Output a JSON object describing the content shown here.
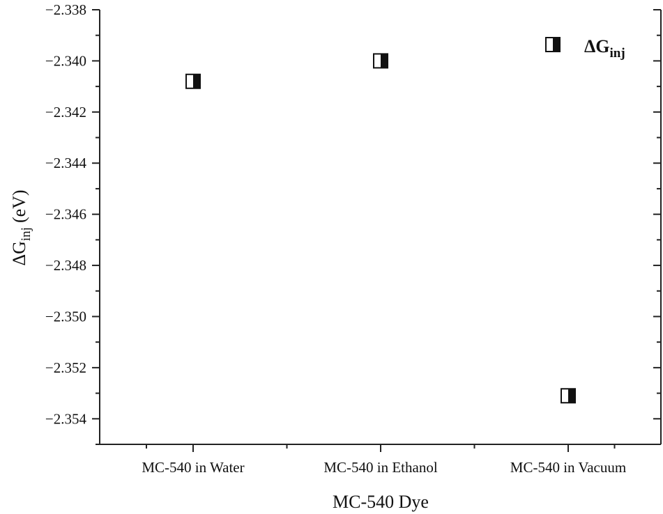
{
  "chart_data": {
    "type": "scatter",
    "categories": [
      "MC-540 in Water",
      "MC-540 in Ethanol",
      "MC-540 in Vacuum"
    ],
    "series": [
      {
        "name": "ΔGinj",
        "name_main": "ΔG",
        "name_sub": "inj",
        "values": [
          -2.3408,
          -2.34,
          -2.3531
        ]
      }
    ],
    "xlabel": "MC-540 Dye",
    "ylabel_main": "ΔG",
    "ylabel_sub": "inj",
    "ylabel_unit": "(eV)",
    "ylim": [
      -2.355,
      -2.338
    ],
    "yticks": [
      -2.338,
      -2.34,
      -2.342,
      -2.344,
      -2.346,
      -2.348,
      -2.35,
      -2.352,
      -2.354
    ],
    "ytick_labels": [
      "−2.338",
      "−2.340",
      "−2.342",
      "−2.344",
      "−2.346",
      "−2.348",
      "−2.350",
      "−2.352",
      "−2.354"
    ],
    "grid": false,
    "legend_position": "top-right",
    "marker": "half-filled-square",
    "marker_color": "#111111"
  }
}
